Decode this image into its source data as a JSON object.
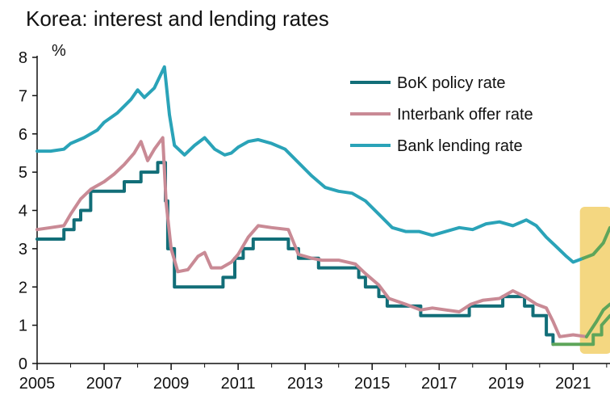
{
  "chart_data": {
    "type": "line",
    "title": "Korea: interest and lending rates",
    "ylabel": "%",
    "xlabel": "",
    "xlim": [
      2005,
      2022.1
    ],
    "ylim": [
      0,
      8
    ],
    "x_ticks": [
      "2005",
      "2007",
      "2009",
      "2011",
      "2013",
      "2015",
      "2017",
      "2019",
      "2021"
    ],
    "y_ticks": [
      "0",
      "1",
      "2",
      "3",
      "4",
      "5",
      "6",
      "7",
      "8"
    ],
    "legend_position": "top-right",
    "highlight_region": {
      "x_start": 2021.25,
      "x_end": 2022.1,
      "color": "#f2d06b"
    },
    "projection_color": "#5ea55a",
    "projection_start": 2021.4,
    "series": [
      {
        "name": "BoK policy rate",
        "color": "#126e78",
        "x": [
          2005.0,
          2005.8,
          2005.8,
          2006.1,
          2006.1,
          2006.3,
          2006.3,
          2006.6,
          2006.6,
          2007.6,
          2007.6,
          2008.1,
          2008.1,
          2008.6,
          2008.6,
          2008.83,
          2008.83,
          2008.9,
          2008.9,
          2009.1,
          2009.1,
          2010.55,
          2010.55,
          2010.9,
          2010.9,
          2011.15,
          2011.15,
          2011.45,
          2011.45,
          2012.5,
          2012.5,
          2012.8,
          2012.8,
          2013.4,
          2013.4,
          2014.6,
          2014.6,
          2014.8,
          2014.8,
          2015.2,
          2015.2,
          2015.45,
          2015.45,
          2016.45,
          2016.45,
          2017.9,
          2017.9,
          2018.9,
          2018.9,
          2019.55,
          2019.55,
          2019.8,
          2019.8,
          2020.2,
          2020.2,
          2020.4,
          2020.4,
          2021.6,
          2021.6,
          2021.85,
          2021.85,
          2022.1
        ],
        "y": [
          3.25,
          3.25,
          3.5,
          3.5,
          3.75,
          3.75,
          4.0,
          4.0,
          4.5,
          4.5,
          4.75,
          4.75,
          5.0,
          5.0,
          5.25,
          5.25,
          4.25,
          4.25,
          3.0,
          3.0,
          2.0,
          2.0,
          2.25,
          2.25,
          2.75,
          2.75,
          3.0,
          3.0,
          3.25,
          3.25,
          3.0,
          3.0,
          2.75,
          2.75,
          2.5,
          2.5,
          2.25,
          2.25,
          2.0,
          2.0,
          1.75,
          1.75,
          1.5,
          1.5,
          1.25,
          1.25,
          1.5,
          1.5,
          1.75,
          1.75,
          1.5,
          1.5,
          1.25,
          1.25,
          0.75,
          0.75,
          0.5,
          0.5,
          0.75,
          0.75,
          1.0,
          1.25
        ]
      },
      {
        "name": "Interbank offer rate",
        "color": "#c98a95",
        "x": [
          2005.0,
          2005.4,
          2005.8,
          2006.0,
          2006.3,
          2006.6,
          2007.0,
          2007.3,
          2007.6,
          2007.9,
          2008.1,
          2008.3,
          2008.5,
          2008.75,
          2008.85,
          2009.0,
          2009.2,
          2009.5,
          2009.8,
          2010.0,
          2010.2,
          2010.5,
          2010.8,
          2011.0,
          2011.3,
          2011.6,
          2012.0,
          2012.5,
          2012.8,
          2013.2,
          2013.5,
          2014.0,
          2014.5,
          2014.8,
          2015.2,
          2015.5,
          2016.0,
          2016.45,
          2016.8,
          2017.2,
          2017.6,
          2017.95,
          2018.3,
          2018.8,
          2019.2,
          2019.55,
          2019.9,
          2020.2,
          2020.4,
          2020.6,
          2021.0,
          2021.4,
          2021.7,
          2021.9,
          2022.1
        ],
        "y": [
          3.5,
          3.55,
          3.6,
          3.9,
          4.3,
          4.55,
          4.75,
          4.95,
          5.2,
          5.5,
          5.8,
          5.3,
          5.6,
          5.9,
          4.2,
          3.0,
          2.4,
          2.45,
          2.8,
          2.9,
          2.5,
          2.5,
          2.65,
          2.85,
          3.3,
          3.6,
          3.55,
          3.5,
          2.85,
          2.75,
          2.7,
          2.7,
          2.6,
          2.35,
          2.05,
          1.7,
          1.55,
          1.4,
          1.45,
          1.4,
          1.35,
          1.55,
          1.65,
          1.7,
          1.9,
          1.75,
          1.55,
          1.45,
          1.1,
          0.7,
          0.75,
          0.7,
          1.1,
          1.4,
          1.55
        ]
      },
      {
        "name": "Bank lending rate",
        "color": "#2aa3b8",
        "x": [
          2005.0,
          2005.4,
          2005.8,
          2006.0,
          2006.4,
          2006.8,
          2007.0,
          2007.4,
          2007.8,
          2008.0,
          2008.2,
          2008.5,
          2008.8,
          2008.95,
          2009.1,
          2009.4,
          2009.7,
          2010.0,
          2010.3,
          2010.6,
          2010.8,
          2011.0,
          2011.3,
          2011.6,
          2012.0,
          2012.4,
          2012.8,
          2013.2,
          2013.6,
          2014.0,
          2014.4,
          2014.8,
          2015.2,
          2015.6,
          2016.0,
          2016.4,
          2016.8,
          2017.2,
          2017.6,
          2018.0,
          2018.4,
          2018.8,
          2019.2,
          2019.6,
          2019.9,
          2020.2,
          2020.5,
          2020.8,
          2021.0,
          2021.3,
          2021.6,
          2021.9,
          2022.1
        ],
        "y": [
          5.55,
          5.55,
          5.6,
          5.75,
          5.9,
          6.1,
          6.3,
          6.55,
          6.9,
          7.15,
          6.95,
          7.2,
          7.75,
          6.5,
          5.7,
          5.45,
          5.7,
          5.9,
          5.6,
          5.45,
          5.5,
          5.65,
          5.8,
          5.85,
          5.75,
          5.6,
          5.25,
          4.9,
          4.6,
          4.5,
          4.45,
          4.25,
          3.9,
          3.55,
          3.45,
          3.45,
          3.35,
          3.45,
          3.55,
          3.5,
          3.65,
          3.7,
          3.6,
          3.75,
          3.6,
          3.3,
          3.05,
          2.8,
          2.65,
          2.75,
          2.85,
          3.15,
          3.55
        ]
      }
    ]
  }
}
